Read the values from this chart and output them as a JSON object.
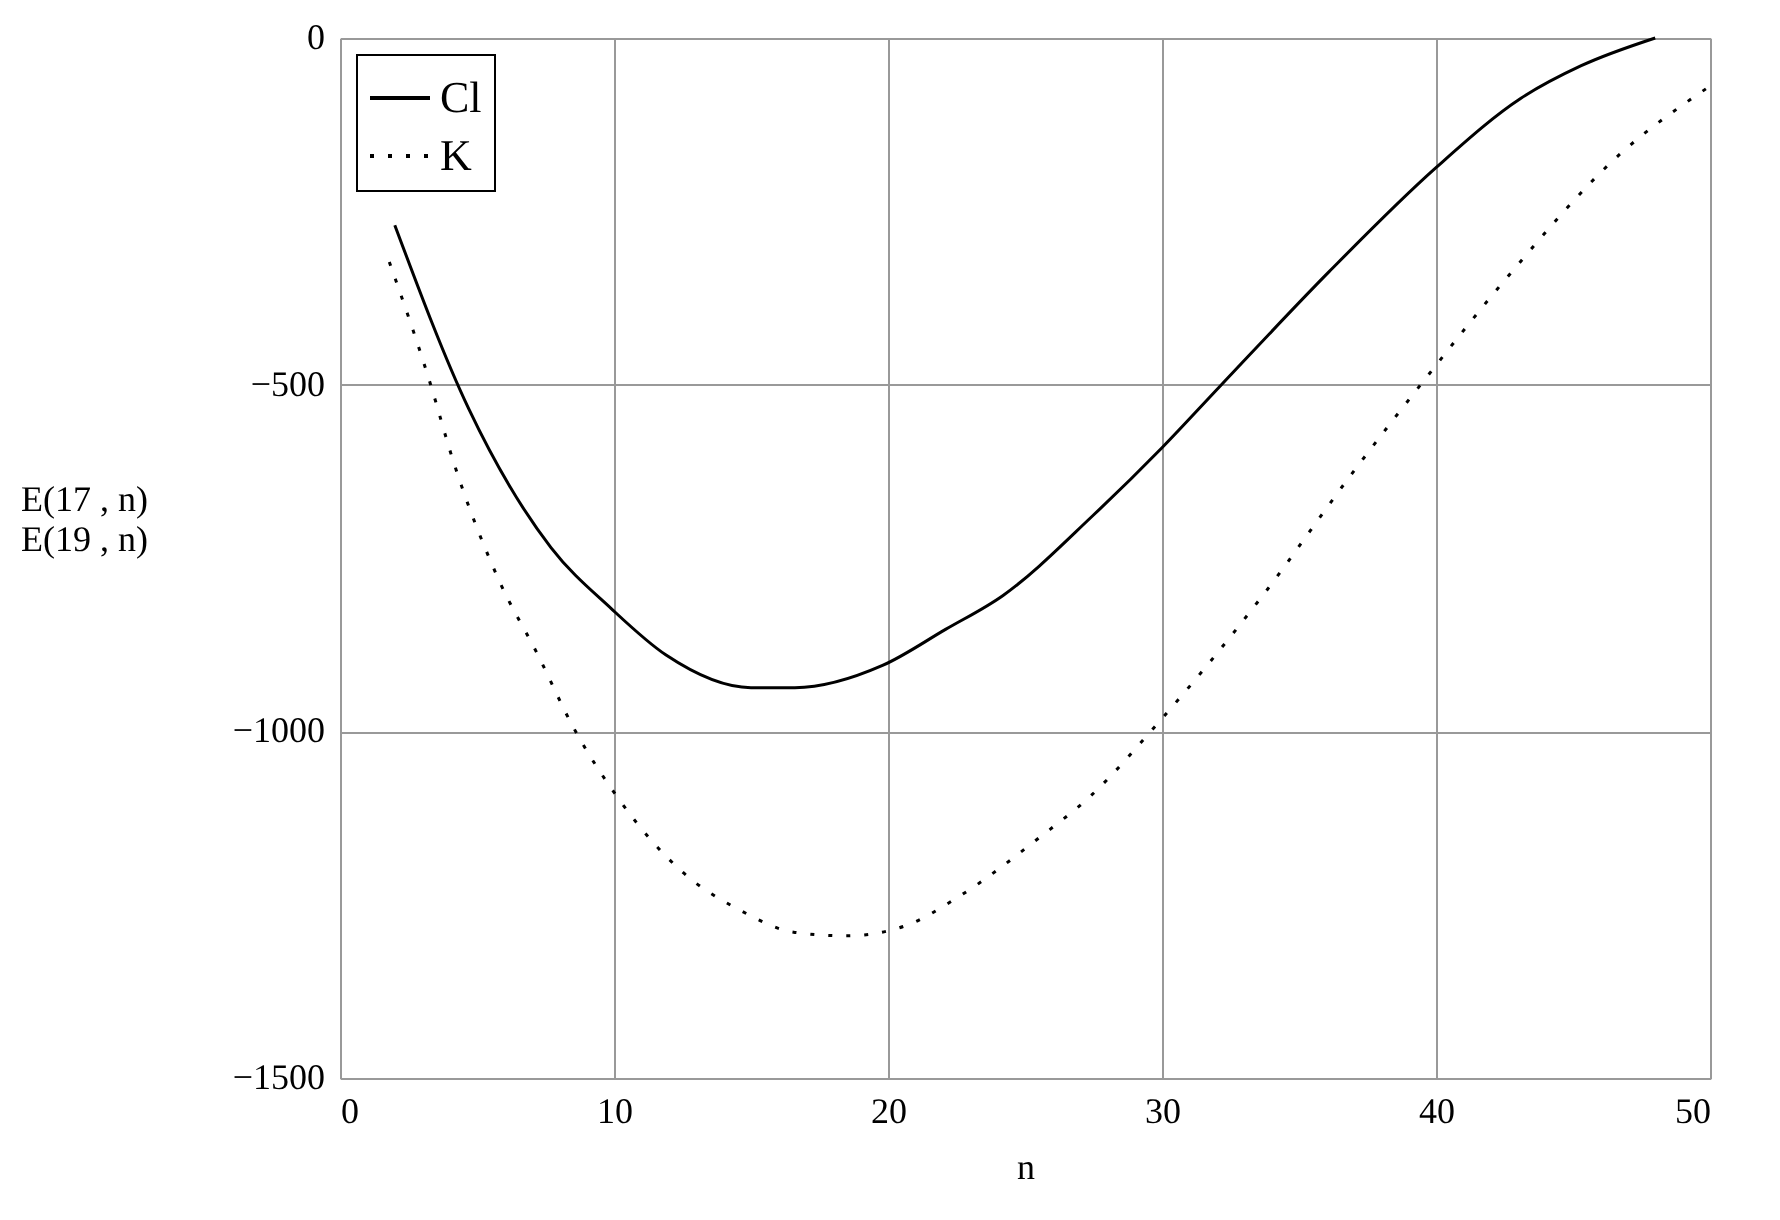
{
  "chart_data": {
    "type": "line",
    "xlabel": "n",
    "ylabel": "E(17 , n)\nE(19 , n)",
    "xlim": [
      0,
      50
    ],
    "ylim": [
      -1500,
      0
    ],
    "xticks": [
      0,
      10,
      20,
      30,
      40,
      50
    ],
    "yticks": [
      -1500,
      -1000,
      -500,
      0
    ],
    "grid": true,
    "legend": "top left",
    "series": [
      {
        "name": "Cl",
        "color": "#000000",
        "line_style": "solid",
        "x": [
          2,
          4.7,
          7.7,
          9.9,
          11.9,
          15,
          16.6,
          19.8,
          22.1,
          24.2,
          27.5,
          30,
          32.1,
          36.1,
          40,
          43.1,
          45.3,
          48
        ],
        "values": [
          -270,
          -535,
          -735,
          -823,
          -890,
          -937,
          -937,
          -905,
          -853,
          -804,
          -688,
          -591,
          -503,
          -337,
          -187,
          -87,
          -40,
          0
        ]
      },
      {
        "name": "K",
        "color": "#000000",
        "line_style": "dotted",
        "x": [
          1.8,
          3.3,
          4.1,
          5.8,
          7.2,
          8.5,
          10.2,
          12.5,
          14.6,
          16.6,
          18.5,
          20.6,
          22.6,
          25.5,
          27.4,
          29.9,
          33.6,
          36.9,
          39.7,
          42.6,
          46.7,
          49.9
        ],
        "values": [
          -323,
          -499,
          -606,
          -782,
          -888,
          -993,
          -1099,
          -1203,
          -1258,
          -1290,
          -1295,
          -1281,
          -1238,
          -1154,
          -1093,
          -986,
          -808,
          -630,
          -487,
          -345,
          -168,
          -72
        ]
      }
    ]
  }
}
